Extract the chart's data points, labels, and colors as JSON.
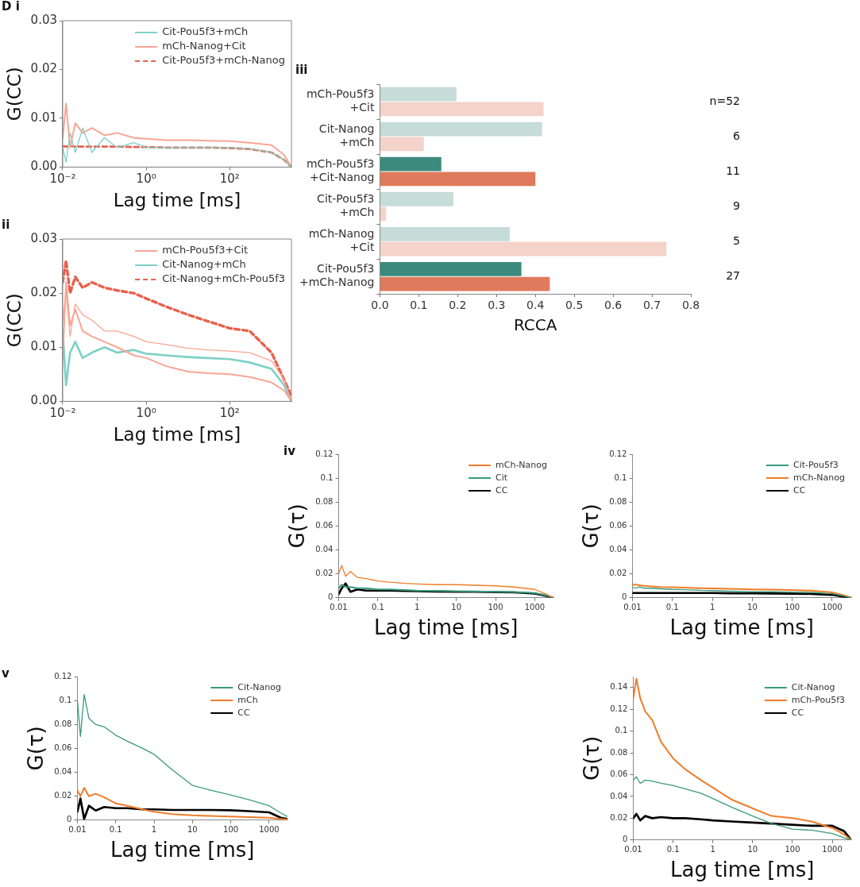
{
  "chart_data": [
    {
      "type": "line",
      "annotations": [
        "D i"
      ],
      "xlabel": "Lag time [ms]",
      "ylabel": "G(CC)",
      "log": "x",
      "legend": "top right",
      "x": [
        0.01,
        0.012,
        0.015,
        0.02,
        0.03,
        0.05,
        0.1,
        0.2,
        0.5,
        1,
        3,
        10,
        30,
        100,
        300,
        1000,
        2000,
        3000
      ],
      "xlim": [
        0.01,
        3000
      ],
      "xticks": [
        {
          "value": 0.01,
          "label": "10⁻²"
        },
        {
          "value": 1,
          "label": "10⁰"
        },
        {
          "value": 100,
          "label": "10²"
        }
      ],
      "ylim": [
        0,
        0.03
      ],
      "yticks": [
        {
          "value": 0,
          "label": "0.00"
        },
        {
          "value": 0.01,
          "label": "0.01"
        },
        {
          "value": 0.02,
          "label": "0.02"
        },
        {
          "value": 0.03,
          "label": "0.03"
        }
      ],
      "series": [
        {
          "name": "Cit-Pou5f3+mCh",
          "color": "#7fd1c8",
          "values": [
            0.004,
            0.001,
            0.007,
            0.003,
            0.008,
            0.003,
            0.006,
            0.004,
            0.005,
            0.004,
            0.004,
            0.004,
            0.004,
            0.004,
            0.0038,
            0.003,
            0.0015,
            0
          ]
        },
        {
          "name": "mCh-Nanog+Cit",
          "color": "#f9a594",
          "values": [
            0.006,
            0.013,
            0.004,
            0.009,
            0.007,
            0.008,
            0.0065,
            0.007,
            0.006,
            0.0058,
            0.0055,
            0.0055,
            0.0054,
            0.0053,
            0.005,
            0.0045,
            0.0025,
            0
          ]
        },
        {
          "name": "Cit-Pou5f3+mCh-Nanog",
          "color": "#e8604c",
          "line_style": "dashed",
          "values": [
            0.0043,
            0.0042,
            0.0043,
            0.0042,
            0.0042,
            0.0042,
            0.0042,
            0.0042,
            0.0041,
            0.0041,
            0.004,
            0.004,
            0.004,
            0.0039,
            0.0037,
            0.003,
            0.0015,
            0
          ]
        }
      ]
    },
    {
      "type": "line",
      "annotations": [
        "ii"
      ],
      "xlabel": "Lag time [ms]",
      "ylabel": "G(CC)",
      "log": "x",
      "legend": "top right",
      "x": [
        0.01,
        0.012,
        0.015,
        0.02,
        0.03,
        0.05,
        0.1,
        0.2,
        0.5,
        1,
        3,
        10,
        30,
        100,
        300,
        1000,
        2000,
        3000
      ],
      "xlim": [
        0.01,
        3000
      ],
      "xticks": [
        {
          "value": 0.01,
          "label": "10⁻²"
        },
        {
          "value": 1,
          "label": "10⁰"
        },
        {
          "value": 100,
          "label": "10²"
        }
      ],
      "ylim": [
        0,
        0.03
      ],
      "yticks": [
        {
          "value": 0,
          "label": "0.00"
        },
        {
          "value": 0.01,
          "label": "0.01"
        },
        {
          "value": 0.02,
          "label": "0.02"
        },
        {
          "value": 0.03,
          "label": "0.03"
        }
      ],
      "series": [
        {
          "name": "mCh-Pou5f3+Cit",
          "color": "#f9a594",
          "values": [
            0.015,
            0.02,
            0.012,
            0.018,
            0.016,
            0.015,
            0.013,
            0.013,
            0.012,
            0.011,
            0.0105,
            0.0098,
            0.0095,
            0.0093,
            0.009,
            0.0075,
            0.004,
            0
          ]
        },
        {
          "color": "#f9a594",
          "values": [
            0.008,
            0.022,
            0.014,
            0.017,
            0.013,
            0.012,
            0.011,
            0.01,
            0.0085,
            0.008,
            0.0065,
            0.0055,
            0.0052,
            0.005,
            0.0045,
            0.0035,
            0.002,
            0
          ]
        },
        {
          "name": "Cit-Nanog+mCh",
          "color": "#7fd1c8",
          "values": [
            0.013,
            0.003,
            0.009,
            0.011,
            0.008,
            0.009,
            0.01,
            0.009,
            0.0095,
            0.0088,
            0.0085,
            0.0082,
            0.008,
            0.0078,
            0.0072,
            0.006,
            0.003,
            0
          ]
        },
        {
          "name": "Cit-Nanog+mCh-Pou5f3",
          "color": "#e8604c",
          "line_style": "dashed",
          "values": [
            0.022,
            0.026,
            0.02,
            0.023,
            0.021,
            0.022,
            0.021,
            0.0205,
            0.02,
            0.019,
            0.0175,
            0.016,
            0.0148,
            0.0135,
            0.013,
            0.009,
            0.004,
            0.001
          ]
        }
      ]
    },
    {
      "type": "bar",
      "orientation": "horizontal",
      "annotations": [
        "iii",
        "n=52",
        "6",
        "11",
        "9",
        "5",
        "27"
      ],
      "xlabel": "RCCA",
      "categories": [
        "mCh-Pou5f3 +Cit",
        "Cit-Nanog +mCh",
        "mCh-Pou5f3 +Cit-Nanog",
        "Cit-Pou5f3 +mCh",
        "mCh-Nanog +Cit",
        "Cit-Pou5f3 +mCh-Nanog"
      ],
      "xlim": [
        0,
        0.8
      ],
      "xticks": [
        {
          "value": 0,
          "label": "0.0"
        },
        0.1,
        0.2,
        0.3,
        0.4,
        0.5,
        0.6,
        0.7,
        0.8
      ],
      "series": [
        {
          "colors": [
            "#c5dcd8",
            "#c5dcd8",
            "#3d8a7e",
            "#c5dcd8",
            "#c5dcd8",
            "#3d8a7e"
          ],
          "values": [
            0.197,
            0.417,
            0.158,
            0.189,
            0.334,
            0.364
          ]
        },
        {
          "colors": [
            "#f4d3ca",
            "#f4d3ca",
            "#e07a5c",
            "#f4d3ca",
            "#f4d3ca",
            "#e07a5c"
          ],
          "values": [
            0.421,
            0.113,
            0.4,
            0.016,
            0.737,
            0.437
          ]
        }
      ]
    },
    {
      "type": "line",
      "annotations": [
        "iv"
      ],
      "xlabel": "Lag time [ms]",
      "ylabel": "G(τ)",
      "log": "x",
      "legend": "top right",
      "x": [
        0.01,
        0.012,
        0.015,
        0.02,
        0.03,
        0.05,
        0.1,
        0.2,
        0.5,
        1,
        3,
        10,
        30,
        100,
        300,
        1000,
        2000,
        3000
      ],
      "xlim": [
        0.01,
        3000
      ],
      "xticks": [
        0.01,
        0.1,
        1,
        10,
        100,
        1000
      ],
      "ylim": [
        0,
        0.12
      ],
      "yticks": [
        0,
        0.02,
        0.04,
        0.06,
        0.08,
        0.1,
        0.12
      ],
      "series": [
        {
          "name": "mCh-Nanog",
          "color": "#f07c28",
          "values": [
            0.02,
            0.027,
            0.018,
            0.022,
            0.017,
            0.016,
            0.014,
            0.013,
            0.012,
            0.0115,
            0.011,
            0.011,
            0.0105,
            0.01,
            0.009,
            0.007,
            0.003,
            0
          ]
        },
        {
          "name": "Cit",
          "color": "#3a9a7e",
          "values": [
            0.008,
            0.011,
            0.009,
            0.009,
            0.008,
            0.008,
            0.007,
            0.007,
            0.0065,
            0.006,
            0.0058,
            0.0055,
            0.0053,
            0.005,
            0.0048,
            0.004,
            0.002,
            0
          ]
        },
        {
          "name": "CC",
          "color": "#000000",
          "values": [
            0.003,
            0.008,
            0.012,
            0.005,
            0.007,
            0.006,
            0.006,
            0.006,
            0.0058,
            0.0055,
            0.0053,
            0.005,
            0.005,
            0.0048,
            0.0045,
            0.0035,
            0.0015,
            0
          ]
        }
      ]
    },
    {
      "type": "line",
      "xlabel": "Lag time [ms]",
      "ylabel": "G(τ)",
      "log": "x",
      "legend": "top right",
      "x": [
        0.01,
        0.012,
        0.015,
        0.02,
        0.03,
        0.05,
        0.1,
        0.2,
        0.5,
        1,
        3,
        10,
        30,
        100,
        300,
        1000,
        2000,
        3000
      ],
      "xlim": [
        0.01,
        3000
      ],
      "xticks": [
        0.01,
        0.1,
        1,
        10,
        100,
        1000
      ],
      "ylim": [
        0,
        0.12
      ],
      "yticks": [
        0,
        0.02,
        0.04,
        0.06,
        0.08,
        0.1,
        0.12
      ],
      "series": [
        {
          "name": "Cit-Pou5f3",
          "color": "#3a9a7e",
          "values": [
            0.009,
            0.008,
            0.009,
            0.008,
            0.008,
            0.0075,
            0.007,
            0.0068,
            0.0062,
            0.006,
            0.0055,
            0.005,
            0.005,
            0.0048,
            0.0045,
            0.0035,
            0.0015,
            0
          ]
        },
        {
          "name": "mCh-Nanog",
          "color": "#f07c28",
          "values": [
            0.011,
            0.011,
            0.0105,
            0.01,
            0.0095,
            0.009,
            0.0088,
            0.0085,
            0.008,
            0.0078,
            0.0075,
            0.007,
            0.0068,
            0.0065,
            0.006,
            0.0045,
            0.002,
            0
          ]
        },
        {
          "name": "CC",
          "color": "#000000",
          "values": [
            0.004,
            0.004,
            0.004,
            0.004,
            0.004,
            0.004,
            0.004,
            0.004,
            0.004,
            0.004,
            0.0038,
            0.0037,
            0.0036,
            0.0035,
            0.0033,
            0.0025,
            0.001,
            0
          ]
        }
      ]
    },
    {
      "type": "line",
      "annotations": [
        "v"
      ],
      "xlabel": "Lag time [ms]",
      "ylabel": "G(τ)",
      "log": "x",
      "legend": "top right",
      "x": [
        0.01,
        0.012,
        0.015,
        0.02,
        0.03,
        0.05,
        0.1,
        0.2,
        0.5,
        1,
        3,
        10,
        30,
        100,
        300,
        1000,
        2000,
        3000
      ],
      "xlim": [
        0.01,
        3000
      ],
      "xticks": [
        0.01,
        0.1,
        1,
        10,
        100,
        1000
      ],
      "ylim": [
        0,
        0.12
      ],
      "yticks": [
        0,
        0.02,
        0.04,
        0.06,
        0.08,
        0.1,
        0.12
      ],
      "series": [
        {
          "name": "Cit-Nanog",
          "color": "#3a9a7e",
          "values": [
            0.1,
            0.07,
            0.105,
            0.085,
            0.08,
            0.078,
            0.071,
            0.066,
            0.06,
            0.055,
            0.042,
            0.029,
            0.025,
            0.021,
            0.017,
            0.012,
            0.006,
            0.003
          ]
        },
        {
          "name": "mCh",
          "color": "#f07c28",
          "values": [
            0.025,
            0.02,
            0.027,
            0.02,
            0.022,
            0.019,
            0.014,
            0.012,
            0.009,
            0.007,
            0.005,
            0.004,
            0.0035,
            0.003,
            0.0025,
            0.002,
            0.001,
            0.0005
          ]
        },
        {
          "name": "CC",
          "color": "#000000",
          "values": [
            0.007,
            0.018,
            0.001,
            0.012,
            0.008,
            0.011,
            0.01,
            0.01,
            0.009,
            0.009,
            0.0085,
            0.0085,
            0.0085,
            0.0082,
            0.0075,
            0.0065,
            0.002,
            0.001
          ]
        }
      ]
    },
    {
      "type": "line",
      "xlabel": "Lag time [ms]",
      "ylabel": "G(τ)",
      "log": "x",
      "legend": "top right",
      "x": [
        0.01,
        0.012,
        0.015,
        0.02,
        0.03,
        0.05,
        0.1,
        0.2,
        0.5,
        1,
        3,
        10,
        30,
        100,
        300,
        1000,
        2000,
        3000
      ],
      "xlim": [
        0.01,
        3000
      ],
      "xticks": [
        0.01,
        0.1,
        1,
        10,
        100,
        1000
      ],
      "ylim": [
        0,
        0.15
      ],
      "yticks": [
        0,
        0.02,
        0.04,
        0.06,
        0.08,
        0.1,
        0.12,
        0.14
      ],
      "series": [
        {
          "name": "Cit-Nanog",
          "color": "#3a9a7e",
          "values": [
            0.055,
            0.058,
            0.052,
            0.055,
            0.054,
            0.052,
            0.05,
            0.047,
            0.043,
            0.038,
            0.03,
            0.022,
            0.015,
            0.01,
            0.009,
            0.006,
            0.002,
            0
          ]
        },
        {
          "name": "mCh-Pou5f3",
          "color": "#f07c28",
          "values": [
            0.13,
            0.148,
            0.13,
            0.118,
            0.11,
            0.09,
            0.075,
            0.065,
            0.055,
            0.048,
            0.037,
            0.029,
            0.022,
            0.02,
            0.017,
            0.011,
            0.005,
            0
          ]
        },
        {
          "name": "CC",
          "color": "#000000",
          "values": [
            0.02,
            0.024,
            0.018,
            0.022,
            0.02,
            0.021,
            0.02,
            0.02,
            0.019,
            0.018,
            0.017,
            0.016,
            0.015,
            0.014,
            0.013,
            0.013,
            0.008,
            0
          ]
        }
      ]
    }
  ]
}
